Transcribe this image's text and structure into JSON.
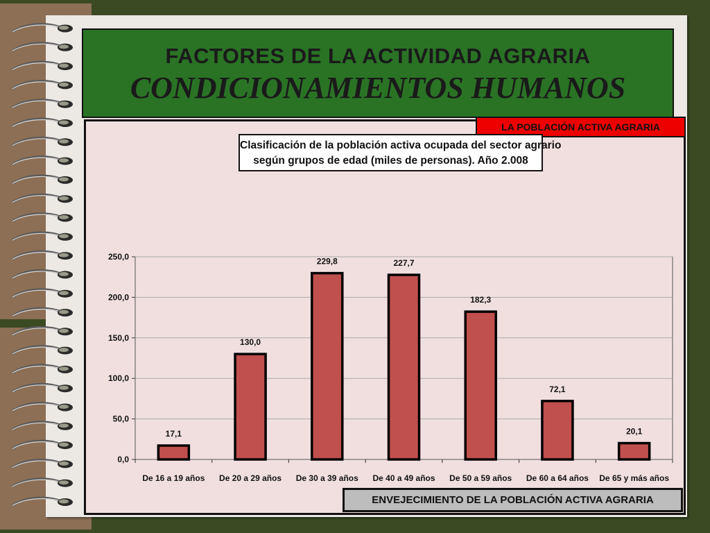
{
  "slide": {
    "title_main": "FACTORES DE LA ACTIVIDAD AGRARIA",
    "title_sub": "CONDICIONAMIENTOS HUMANOS",
    "section_tag": "LA POBLACIÓN ACTIVA AGRARIA",
    "footer_tag": "ENVEJECIMIENTO DE LA POBLACIÓN ACTIVA AGRARIA"
  },
  "chart_data": {
    "type": "bar",
    "title_line1": "Clasificación de la población activa ocupada del sector agrario",
    "title_line2": "según grupos de edad (miles de personas). Año 2.008",
    "categories": [
      "De 16 a 19 años",
      "De 20 a 29 años",
      "De 30 a 39 años",
      "De 40 a 49 años",
      "De 50 a 59 años",
      "De 60 a 64 años",
      "De 65 y más años"
    ],
    "values": [
      17.1,
      130.0,
      229.8,
      227.7,
      182.3,
      72.1,
      20.1
    ],
    "value_labels": [
      "17,1",
      "130,0",
      "229,8",
      "227,7",
      "182,3",
      "72,1",
      "20,1"
    ],
    "ylim": [
      0,
      250
    ],
    "yticks": [
      0,
      50,
      100,
      150,
      200,
      250
    ],
    "ytick_labels": [
      "0,0",
      "50,0",
      "100,0",
      "150,0",
      "200,0",
      "250,0"
    ],
    "grid": true,
    "bar_color": "#c0504d",
    "bar_edge": "#000000"
  }
}
